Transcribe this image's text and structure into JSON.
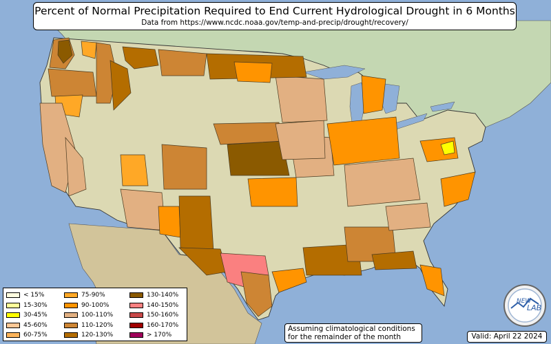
{
  "title": "Percent of Normal Precipitation Required to End Current Hydrological Drought in 6 Months",
  "subtitle": "Data from https://www.ncdc.noaa.gov/temp-and-precip/drought/recovery/",
  "legend": [
    {
      "label": "< 15%",
      "color": "#fffde0"
    },
    {
      "label": "15-30%",
      "color": "#ffff99"
    },
    {
      "label": "30-45%",
      "color": "#ffff00"
    },
    {
      "label": "45-60%",
      "color": "#ffc896"
    },
    {
      "label": "60-75%",
      "color": "#fcb45a"
    },
    {
      "label": "75-90%",
      "color": "#ffa826"
    },
    {
      "label": "90-100%",
      "color": "#ff9400"
    },
    {
      "label": "100-110%",
      "color": "#e2b082"
    },
    {
      "label": "110-120%",
      "color": "#cd8534"
    },
    {
      "label": "120-130%",
      "color": "#b46d00"
    },
    {
      "label": "130-140%",
      "color": "#8b5a00"
    },
    {
      "label": "140-150%",
      "color": "#fa8080"
    },
    {
      "label": "150-160%",
      "color": "#c84848"
    },
    {
      "label": "160-170%",
      "color": "#a00000"
    },
    {
      "label": "> 170%",
      "color": "#a0005a"
    }
  ],
  "note": {
    "line1": "Assuming climatological conditions",
    "line2": "for the remainder of the month"
  },
  "valid": "Valid: April 22 2024",
  "logo_text": {
    "left": "NEW",
    "right": "LAB"
  },
  "colors": {
    "ocean": "#8fb0d8",
    "land_usa": "#dcd9b3",
    "land_canada": "#c4d7b2",
    "land_mexico": "#d2c49a",
    "lakes": "#8fb0d8"
  },
  "drought_regions": [
    {
      "name": "Pacific Northwest coast",
      "class": "110-120%"
    },
    {
      "name": "Western Washington",
      "class": "130-140%"
    },
    {
      "name": "Central Washington",
      "class": "75-90%"
    },
    {
      "name": "Oregon",
      "class": "110-120%"
    },
    {
      "name": "Southeast Oregon",
      "class": "75-90%"
    },
    {
      "name": "Idaho",
      "class": "110-120%"
    },
    {
      "name": "Idaho",
      "class": "120-130%"
    },
    {
      "name": "Western Montana",
      "class": "120-130%"
    },
    {
      "name": "Montana east",
      "class": "110-120%"
    },
    {
      "name": "Northern California",
      "class": "100-110%"
    },
    {
      "name": "California interior",
      "class": "100-110%"
    },
    {
      "name": "Utah",
      "class": "75-90%"
    },
    {
      "name": "Colorado",
      "class": "110-120%"
    },
    {
      "name": "Arizona",
      "class": "100-110%"
    },
    {
      "name": "New Mexico west",
      "class": "90-100%"
    },
    {
      "name": "New Mexico",
      "class": "120-130%"
    },
    {
      "name": "West Texas",
      "class": "120-130%"
    },
    {
      "name": "Texas Big Bend",
      "class": "140-150%"
    },
    {
      "name": "South Texas",
      "class": "110-120%"
    },
    {
      "name": "Texas coast",
      "class": "90-100%"
    },
    {
      "name": "Kansas",
      "class": "130-140%"
    },
    {
      "name": "Oklahoma",
      "class": "90-100%"
    },
    {
      "name": "Nebraska",
      "class": "110-120%"
    },
    {
      "name": "Missouri/Arkansas",
      "class": "100-110%"
    },
    {
      "name": "Louisiana",
      "class": "120-130%"
    },
    {
      "name": "Mississippi/Alabama",
      "class": "110-120%"
    },
    {
      "name": "Florida panhandle",
      "class": "120-130%"
    },
    {
      "name": "Florida peninsula",
      "class": "90-100%"
    },
    {
      "name": "Georgia",
      "class": "100-110%"
    },
    {
      "name": "North Carolina",
      "class": "90-100%"
    },
    {
      "name": "Tennessee/Kentucky",
      "class": "100-110%"
    },
    {
      "name": "Ohio Valley",
      "class": "90-100%"
    },
    {
      "name": "Illinois",
      "class": "100-110%"
    },
    {
      "name": "Iowa/Wisconsin",
      "class": "100-110%"
    },
    {
      "name": "Michigan",
      "class": "90-100%"
    },
    {
      "name": "Minnesota/North Dakota",
      "class": "120-130%"
    },
    {
      "name": "Minnesota",
      "class": "90-100%"
    },
    {
      "name": "Virginia",
      "class": "90-100%"
    },
    {
      "name": "Virginia",
      "class": "30-45%"
    }
  ]
}
